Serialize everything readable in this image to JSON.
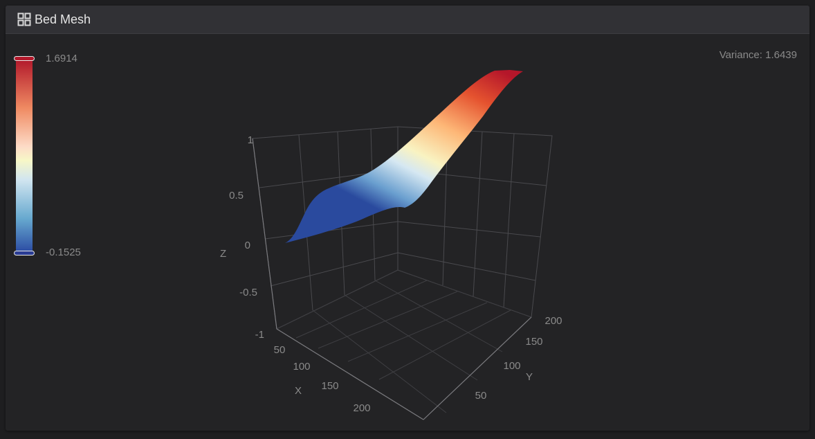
{
  "card": {
    "title": "Bed Mesh",
    "icon": "grid-icon",
    "variance_label": "Variance: 1.6439"
  },
  "colorscale": {
    "max_label": "1.6914",
    "min_label": "-0.1525",
    "max_value": 1.6914,
    "min_value": -0.1525,
    "stops": [
      "#b2182b",
      "#ef8a62",
      "#fddbc7",
      "#f7f7c7",
      "#d1e5f0",
      "#67a9cf",
      "#2948a2"
    ]
  },
  "chart_data": {
    "type": "surface",
    "axes": {
      "x": {
        "label": "X",
        "ticks": [
          "50",
          "100",
          "150",
          "200"
        ]
      },
      "y": {
        "label": "Y",
        "ticks": [
          "50",
          "100",
          "150",
          "200"
        ]
      },
      "z": {
        "label": "Z",
        "ticks": [
          "1",
          "0.5",
          "0",
          "-0.5",
          "-1"
        ]
      }
    },
    "zlim": [
      -1,
      1
    ],
    "grid": true
  }
}
